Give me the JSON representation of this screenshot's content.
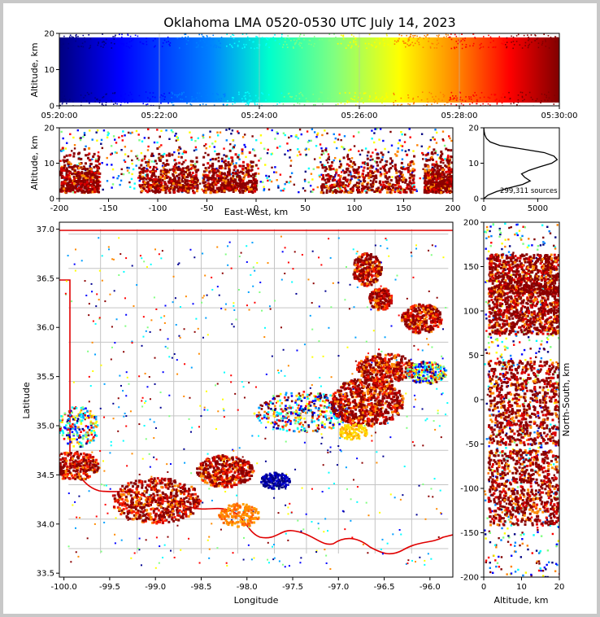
{
  "title": "Oklahoma LMA 0520-0530 UTC July 14, 2023",
  "source_count_label": "299,311 sources",
  "colors": {
    "frame": "#c8c8c8",
    "state_border": "#e00000",
    "county_lines": "#c0c0c0",
    "jet": [
      "#000080",
      "#0000ff",
      "#0080ff",
      "#00ffff",
      "#80ff80",
      "#ffff00",
      "#ff8000",
      "#ff0000",
      "#800000"
    ]
  },
  "chart_data": [
    {
      "name": "time-altitude",
      "type": "scatter",
      "xlabel": "",
      "ylabel": "Altitude, km",
      "xticks": [
        "05:20:00",
        "05:22:00",
        "05:24:00",
        "05:26:00",
        "05:28:00",
        "05:30:00"
      ],
      "yticks": [
        0,
        10,
        20
      ],
      "xlim": [
        0,
        10
      ],
      "ylim": [
        0,
        20
      ],
      "color_by": "time"
    },
    {
      "name": "east-west-altitude",
      "type": "scatter",
      "xlabel": "East-West, km",
      "ylabel": "Altitude, km",
      "xticks": [
        -200,
        -150,
        -100,
        -50,
        0,
        50,
        100,
        150,
        200
      ],
      "yticks": [
        0,
        10,
        20
      ],
      "xlim": [
        -200,
        200
      ],
      "ylim": [
        0,
        20
      ],
      "dense_bands_km": [
        [
          -200,
          -160
        ],
        [
          -120,
          -60
        ],
        [
          -55,
          0
        ],
        [
          65,
          160
        ],
        [
          170,
          200
        ]
      ]
    },
    {
      "name": "altitude-histogram",
      "type": "line",
      "xticks": [
        0,
        5000
      ],
      "yticks": [
        0,
        10,
        20
      ],
      "xlim": [
        0,
        7000
      ],
      "ylim": [
        0,
        20
      ],
      "altitude": [
        0,
        1,
        2,
        3,
        4,
        5,
        6,
        7,
        8,
        9,
        10,
        11,
        12,
        13,
        14,
        15,
        16,
        17,
        18,
        19,
        20
      ],
      "counts": [
        0,
        400,
        1200,
        2300,
        3600,
        4300,
        3800,
        3500,
        4200,
        5200,
        6300,
        6800,
        6500,
        5600,
        3600,
        1500,
        600,
        250,
        100,
        40,
        0
      ]
    },
    {
      "name": "plan-view-map",
      "type": "scatter",
      "xlabel": "Longitude",
      "ylabel": "Latitude",
      "xticks": [
        "-100.0",
        "-99.5",
        "-99.0",
        "-98.5",
        "-98.0",
        "-97.5",
        "-97.0",
        "-96.5",
        "-96.0"
      ],
      "yticks": [
        "33.5",
        "34.0",
        "34.5",
        "35.0",
        "35.5",
        "36.0",
        "36.5",
        "37.0"
      ],
      "xlim": [
        -100.05,
        -95.75
      ],
      "ylim": [
        33.46,
        37.07
      ]
    },
    {
      "name": "north-south-altitude",
      "type": "scatter",
      "xlabel": "Altitude, km",
      "ylabel": "North-South, km",
      "xticks": [
        0,
        10,
        20
      ],
      "yticks": [
        -200,
        -150,
        -100,
        -50,
        0,
        50,
        100,
        150,
        200
      ],
      "xlim": [
        0,
        20
      ],
      "ylim": [
        -200,
        200
      ],
      "dense_bands_km": [
        [
          120,
          165
        ],
        [
          75,
          130
        ],
        [
          -50,
          45
        ],
        [
          -140,
          -55
        ]
      ]
    }
  ]
}
